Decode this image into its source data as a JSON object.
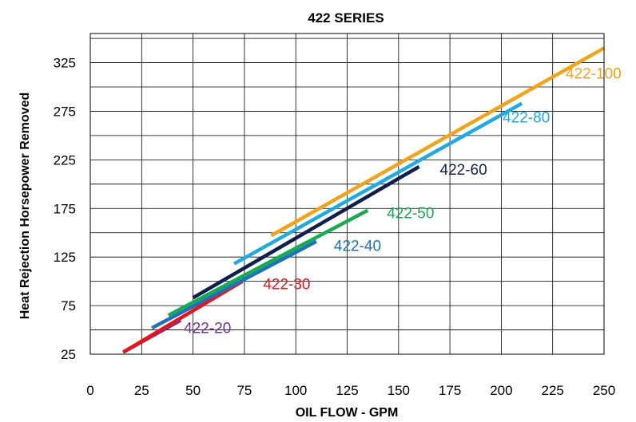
{
  "chart_data": {
    "type": "line",
    "title": "422 SERIES",
    "xlabel": "OIL FLOW - GPM",
    "ylabel": "Heat Rejection Horsepower Removed",
    "xlim": [
      0,
      250
    ],
    "ylim": [
      25,
      355
    ],
    "xticks": [
      0,
      25,
      50,
      75,
      100,
      125,
      150,
      175,
      200,
      225,
      250
    ],
    "yticks": [
      25,
      75,
      125,
      175,
      225,
      275,
      325
    ],
    "grid": true,
    "series": [
      {
        "name": "422-20",
        "color": "#7030A0",
        "x": [
          16,
          44
        ],
        "y": [
          27,
          60
        ]
      },
      {
        "name": "422-30",
        "color": "#E8141B",
        "x": [
          16,
          74
        ],
        "y": [
          27,
          100
        ]
      },
      {
        "name": "422-40",
        "color": "#1A73BB",
        "x": [
          30,
          110
        ],
        "y": [
          52,
          141
        ]
      },
      {
        "name": "422-50",
        "color": "#19A94F",
        "x": [
          38,
          135
        ],
        "y": [
          65,
          173
        ]
      },
      {
        "name": "422-60",
        "color": "#0E1F4E",
        "x": [
          50,
          160
        ],
        "y": [
          83,
          218
        ]
      },
      {
        "name": "422-80",
        "color": "#1FAAE1",
        "x": [
          70,
          210
        ],
        "y": [
          118,
          283
        ]
      },
      {
        "name": "422-100",
        "color": "#F2A31A",
        "x": [
          88,
          250
        ],
        "y": [
          147,
          340
        ]
      }
    ]
  }
}
